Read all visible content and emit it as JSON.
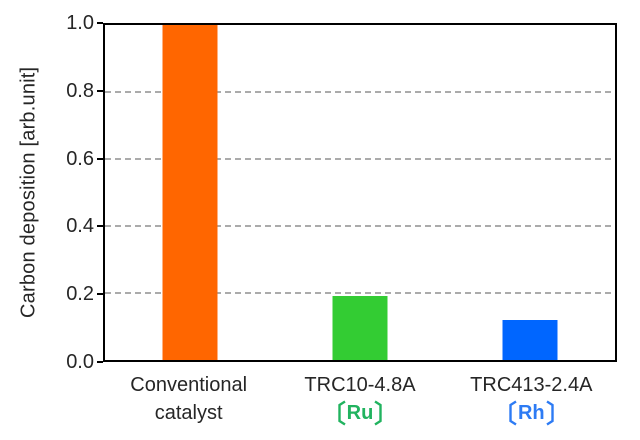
{
  "chart_data": {
    "type": "bar",
    "categories": [
      "Conventional catalyst",
      "TRC10-4.8A 〔Ru〕",
      "TRC413-2.4A 〔Rh〕"
    ],
    "values": [
      1.0,
      0.19,
      0.12
    ],
    "bar_colors": [
      "#FF6600",
      "#33CC33",
      "#0066FF"
    ],
    "ylabel": "Carbon deposition [arb.unit]",
    "xlabel": "",
    "ylim": [
      0,
      1.0
    ],
    "yticks": [
      "0.0",
      "0.2",
      "0.4",
      "0.6",
      "0.8",
      "1.0"
    ],
    "grid": "horizontal-dashed",
    "legend": "none"
  },
  "x_axis": {
    "labels": [
      {
        "line1": "Conventional",
        "line2": "catalyst",
        "brackets": false,
        "line2_color": "#262626",
        "slug": "conventional-catalyst"
      },
      {
        "line1": "TRC10-4.8A",
        "line2": "Ru",
        "brackets": true,
        "line2_color": "#21b35f",
        "slug": "trc10-4-8a-ru"
      },
      {
        "line1": "TRC413-2.4A",
        "line2": "Rh",
        "brackets": true,
        "line2_color": "#2d7bf4",
        "slug": "trc413-2-4a-rh"
      }
    ]
  },
  "colors": {
    "frame": "#000000",
    "grid": "#ababab",
    "text": "#262626"
  }
}
